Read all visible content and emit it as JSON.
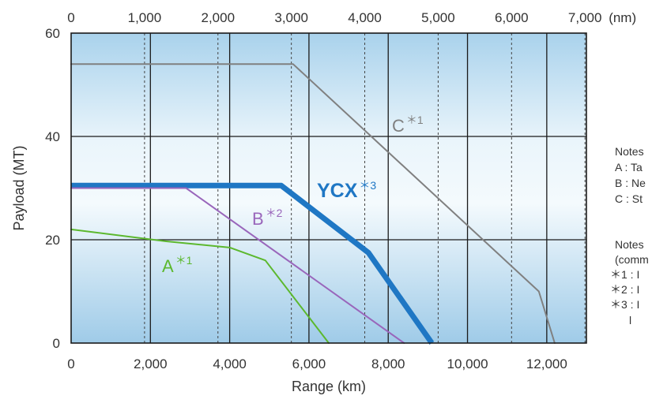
{
  "chart_data": {
    "type": "line",
    "xlabel": "Range (km)",
    "ylabel": "Payload (MT)",
    "x_range_km": [
      0,
      13000
    ],
    "y_range": [
      0,
      60
    ],
    "x_ticks_km": [
      "0",
      "2,000",
      "4,000",
      "6,000",
      "8,000",
      "10,000",
      "12,000"
    ],
    "x2_ticks_nm": [
      "0",
      "1,000",
      "2,000",
      "3,000",
      "4,000",
      "5,000",
      "6,000",
      "7,000"
    ],
    "x2_unit": "(nm)",
    "y_ticks": [
      "0",
      "20",
      "40",
      "60"
    ],
    "grid": true,
    "series": [
      {
        "name": "C",
        "note_mark": "*1",
        "color": "#808080",
        "x": [
          0,
          5600,
          11800,
          12200
        ],
        "y": [
          54,
          54,
          10,
          0
        ]
      },
      {
        "name": "YCX",
        "note_mark": "*3",
        "color": "#1f77c4",
        "x": [
          0,
          5300,
          7500,
          9100
        ],
        "y": [
          30.5,
          30.5,
          17.5,
          0
        ]
      },
      {
        "name": "B",
        "note_mark": "*2",
        "color": "#9966bb",
        "x": [
          0,
          2900,
          8400
        ],
        "y": [
          30,
          30,
          0
        ]
      },
      {
        "name": "A",
        "note_mark": "*1",
        "color": "#5cb82e",
        "x": [
          0,
          2400,
          4000,
          4900,
          6500
        ],
        "y": [
          22,
          19.7,
          18.5,
          16,
          0
        ]
      }
    ]
  },
  "notes": {
    "lines": [
      "Notes",
      "A : Ta",
      "B : Ne",
      "C : St"
    ],
    "lines2": [
      "Notes",
      "(comm",
      "＊1 : I",
      "＊2 : I",
      "＊3 : I"
    ]
  }
}
